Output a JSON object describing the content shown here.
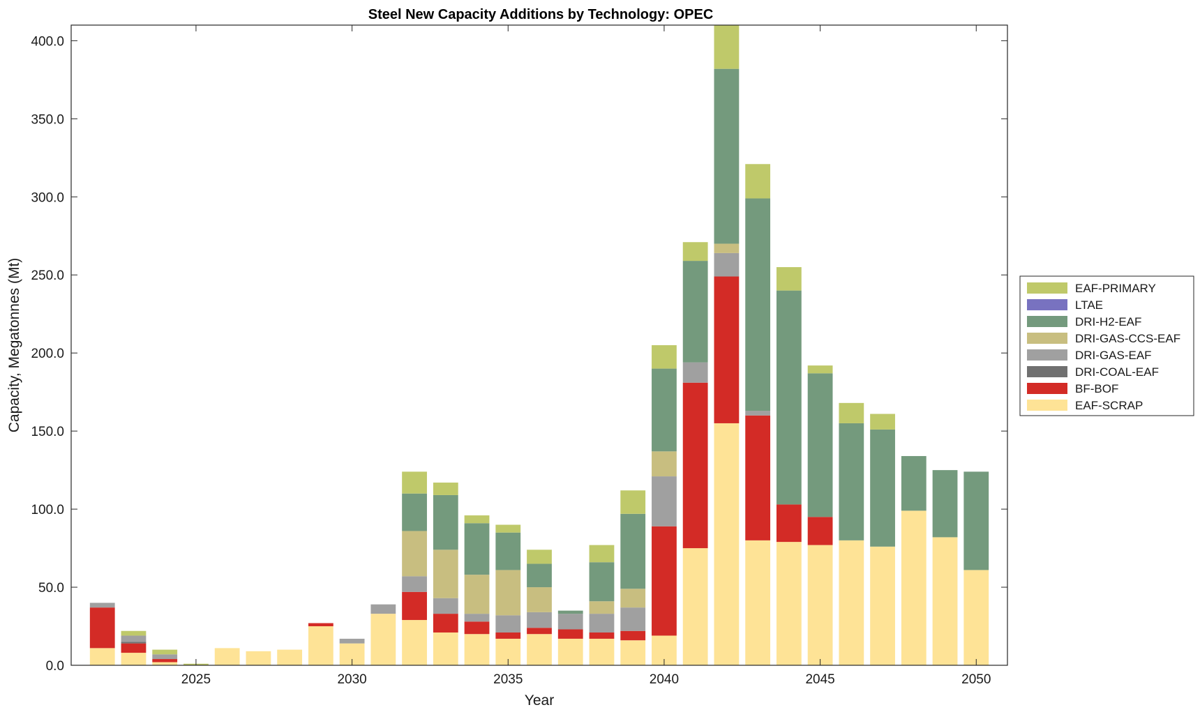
{
  "chart_data": {
    "type": "bar",
    "stacked": true,
    "title": "Steel New Capacity Additions by Technology: OPEC",
    "xlabel": "Year",
    "ylabel": "Capacity, Megatonnes (Mt)",
    "xlim": [
      2021,
      2051
    ],
    "ylim": [
      0,
      410
    ],
    "xticks": [
      2025,
      2030,
      2035,
      2040,
      2045,
      2050
    ],
    "xtick_labels": [
      "2025",
      "2030",
      "2035",
      "2040",
      "2045",
      "2050"
    ],
    "yticks": [
      0,
      50,
      100,
      150,
      200,
      250,
      300,
      350,
      400
    ],
    "ytick_labels": [
      "0.0",
      "50.0",
      "100.0",
      "150.0",
      "200.0",
      "250.0",
      "300.0",
      "350.0",
      "400.0"
    ],
    "legend_position": "outside-right",
    "categories": [
      2022,
      2023,
      2024,
      2025,
      2026,
      2027,
      2028,
      2029,
      2030,
      2031,
      2032,
      2033,
      2034,
      2035,
      2036,
      2037,
      2038,
      2039,
      2040,
      2041,
      2042,
      2043,
      2044,
      2045,
      2046,
      2047,
      2048,
      2049,
      2050
    ],
    "series": [
      {
        "name": "EAF-SCRAP",
        "color": "#FEE396",
        "values": [
          11,
          8,
          2,
          0,
          11,
          9,
          10,
          25,
          14,
          33,
          29,
          21,
          20,
          17,
          20,
          17,
          17,
          16,
          19,
          75,
          155,
          80,
          79,
          77,
          80,
          76,
          99,
          82,
          61
        ]
      },
      {
        "name": "BF-BOF",
        "color": "#D32B26",
        "values": [
          26,
          6,
          2,
          0,
          0,
          0,
          0,
          2,
          0,
          0,
          18,
          12,
          8,
          4,
          4,
          6,
          4,
          6,
          70,
          106,
          94,
          80,
          24,
          18,
          0,
          0,
          0,
          0,
          0
        ]
      },
      {
        "name": "DRI-COAL-EAF",
        "color": "#707070",
        "values": [
          0,
          1,
          0,
          0,
          0,
          0,
          0,
          0,
          0,
          0,
          0,
          0,
          0,
          0,
          0,
          0,
          0,
          0,
          0,
          0,
          0,
          0,
          0,
          0,
          0,
          0,
          0,
          0,
          0
        ]
      },
      {
        "name": "DRI-GAS-EAF",
        "color": "#A0A0A0",
        "values": [
          3,
          4,
          3,
          0,
          0,
          0,
          0,
          0,
          3,
          6,
          10,
          10,
          5,
          11,
          10,
          10,
          12,
          15,
          32,
          13,
          15,
          3,
          0,
          0,
          0,
          0,
          0,
          0,
          0
        ]
      },
      {
        "name": "DRI-GAS-CCS-EAF",
        "color": "#C8BE80",
        "values": [
          0,
          0,
          0,
          0,
          0,
          0,
          0,
          0,
          0,
          0,
          29,
          31,
          25,
          29,
          16,
          0,
          8,
          12,
          16,
          0,
          6,
          0,
          0,
          0,
          0,
          0,
          0,
          0,
          0
        ]
      },
      {
        "name": "DRI-H2-EAF",
        "color": "#749A7D",
        "values": [
          0,
          0,
          0,
          0,
          0,
          0,
          0,
          0,
          0,
          0,
          24,
          35,
          33,
          24,
          15,
          2,
          25,
          48,
          53,
          65,
          112,
          136,
          137,
          92,
          75,
          75,
          35,
          43,
          63
        ]
      },
      {
        "name": "LTAE",
        "color": "#7872C0",
        "values": [
          0,
          0,
          0,
          0,
          0,
          0,
          0,
          0,
          0,
          0,
          0,
          0,
          0,
          0,
          0,
          0,
          0,
          0,
          0,
          0,
          0,
          0,
          0,
          0,
          0,
          0,
          0,
          0,
          0
        ]
      },
      {
        "name": "EAF-PRIMARY",
        "color": "#BFC96A",
        "values": [
          0,
          3,
          3,
          1,
          0,
          0,
          0,
          0,
          0,
          0,
          14,
          8,
          5,
          5,
          9,
          0,
          11,
          15,
          15,
          12,
          30,
          22,
          15,
          5,
          13,
          10,
          0,
          0,
          0
        ]
      }
    ],
    "legend_order": [
      "EAF-PRIMARY",
      "LTAE",
      "DRI-H2-EAF",
      "DRI-GAS-CCS-EAF",
      "DRI-GAS-EAF",
      "DRI-COAL-EAF",
      "BF-BOF",
      "EAF-SCRAP"
    ]
  }
}
